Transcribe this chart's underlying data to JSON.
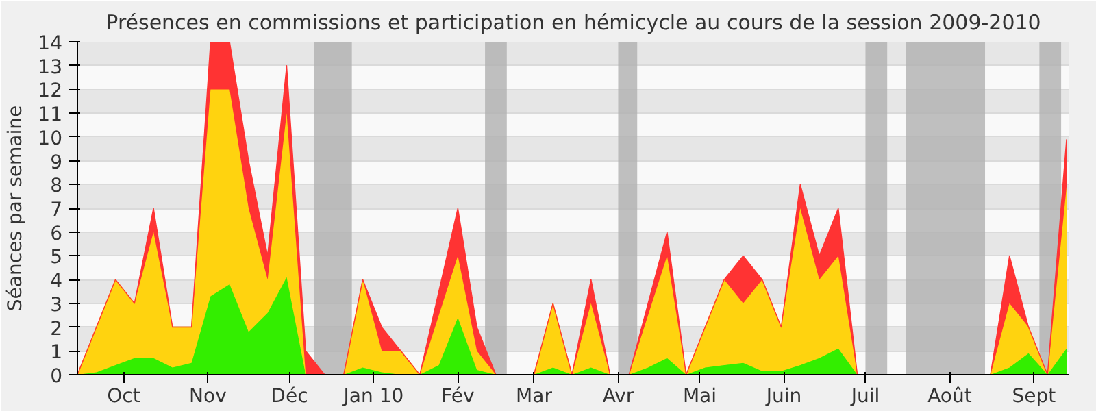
{
  "chart_data": {
    "type": "area",
    "stacked": true,
    "title": "Présences en commissions et participation en hémicycle au cours de la session 2009-2010",
    "ylabel": "Séances par semaine",
    "x": [
      "2009-09-28",
      "2009-10-05",
      "2009-10-12",
      "2009-10-19",
      "2009-10-26",
      "2009-11-02",
      "2009-11-09",
      "2009-11-16",
      "2009-11-23",
      "2009-11-30",
      "2009-12-07",
      "2009-12-14",
      "2009-12-21",
      "2009-12-28",
      "2010-01-04",
      "2010-01-11",
      "2010-01-18",
      "2010-01-25",
      "2010-02-01",
      "2010-02-08",
      "2010-02-15",
      "2010-02-22",
      "2010-03-01",
      "2010-03-08",
      "2010-03-15",
      "2010-03-22",
      "2010-03-29",
      "2010-04-05",
      "2010-04-12",
      "2010-04-19",
      "2010-04-26",
      "2010-05-03",
      "2010-05-10",
      "2010-05-17",
      "2010-05-24",
      "2010-05-31",
      "2010-06-07",
      "2010-06-14",
      "2010-06-21",
      "2010-06-28",
      "2010-07-05",
      "2010-07-12",
      "2010-07-19",
      "2010-07-26",
      "2010-08-02",
      "2010-08-09",
      "2010-08-16",
      "2010-08-23",
      "2010-08-30",
      "2010-09-06",
      "2010-09-13",
      "2010-09-20",
      "2010-09-27"
    ],
    "series": [
      {
        "color": "#33ee00",
        "values": [
          0,
          0.1,
          0.4,
          0.7,
          0.7,
          0.3,
          0.5,
          3.3,
          3.8,
          1.8,
          2.6,
          4.1,
          0,
          0,
          0,
          0.3,
          0.1,
          0,
          0,
          0.4,
          2.4,
          0.2,
          0,
          0,
          0,
          0.3,
          0,
          0.3,
          0,
          0,
          0.3,
          0.7,
          0,
          0.3,
          0.4,
          0.5,
          0.15,
          0.15,
          0.4,
          0.7,
          1.1,
          0,
          0,
          0,
          0,
          0,
          0,
          0,
          0,
          0.3,
          0.9,
          0,
          1.1
        ]
      },
      {
        "color": "#ffd30f",
        "values": [
          0,
          1.9,
          3.6,
          2.3,
          5.3,
          1.7,
          1.5,
          8.7,
          8.2,
          5.2,
          1.4,
          6.9,
          0,
          0,
          0,
          3.7,
          0.9,
          1,
          0,
          2.1,
          2.6,
          0.8,
          0,
          0,
          0,
          2.7,
          0,
          2.7,
          0,
          0,
          2.2,
          4.3,
          0,
          1.7,
          3.6,
          2.5,
          3.85,
          1.85,
          6.6,
          3.3,
          3.9,
          0,
          0,
          0,
          0,
          0,
          0,
          0,
          0,
          2.7,
          1.1,
          0,
          6.8
        ]
      },
      {
        "color": "#ff3333",
        "values": [
          0,
          0,
          0,
          0,
          1,
          0,
          0,
          2,
          2,
          2,
          1,
          2,
          1,
          0,
          0,
          0,
          1,
          0,
          0,
          1,
          2,
          1,
          0,
          0,
          0,
          0,
          0,
          1,
          0,
          0,
          0.5,
          1,
          0,
          0,
          0,
          2,
          0,
          0,
          1,
          1,
          2,
          0,
          0,
          0,
          0,
          0,
          0,
          0,
          0,
          2,
          0,
          0,
          2
        ]
      }
    ],
    "xlim": [
      "2009-09-28",
      "2010-09-28"
    ],
    "ylim": [
      0,
      14
    ],
    "yticks": [
      0,
      1,
      2,
      3,
      4,
      5,
      6,
      7,
      8,
      9,
      10,
      11,
      12,
      13,
      14
    ],
    "xticks": [
      {
        "value": "2009-10-15",
        "label": "Oct"
      },
      {
        "value": "2009-11-15",
        "label": "Nov"
      },
      {
        "value": "2009-12-15",
        "label": "Déc"
      },
      {
        "value": "2010-01-15",
        "label": "Jan 10"
      },
      {
        "value": "2010-02-15",
        "label": "Fév"
      },
      {
        "value": "2010-03-15",
        "label": "Mar"
      },
      {
        "value": "2010-04-15",
        "label": "Avr"
      },
      {
        "value": "2010-05-15",
        "label": "Mai"
      },
      {
        "value": "2010-06-15",
        "label": "Juin"
      },
      {
        "value": "2010-07-15",
        "label": "Juil"
      },
      {
        "value": "2010-08-15",
        "label": "Août"
      },
      {
        "value": "2010-09-15",
        "label": "Sept"
      }
    ],
    "bands": [
      {
        "axis": "x",
        "from": "2009-12-24",
        "to": "2010-01-07",
        "color": "#b0b0b0"
      },
      {
        "axis": "x",
        "from": "2010-02-25",
        "to": "2010-03-05",
        "color": "#b0b0b0"
      },
      {
        "axis": "x",
        "from": "2010-04-15",
        "to": "2010-04-22",
        "color": "#b0b0b0"
      },
      {
        "axis": "x",
        "from": "2010-07-15",
        "to": "2010-07-23",
        "color": "#b0b0b0"
      },
      {
        "axis": "x",
        "from": "2010-07-30",
        "to": "2010-08-28",
        "color": "#b0b0b0"
      },
      {
        "axis": "x",
        "from": "2010-09-17",
        "to": "2010-09-25",
        "color": "#b0b0b0"
      }
    ],
    "grid": "y"
  }
}
